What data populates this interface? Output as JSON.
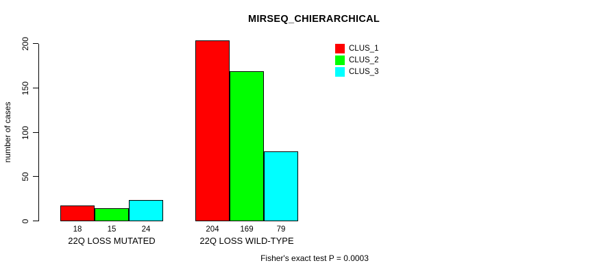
{
  "title": "MIRSEQ_CHIERARCHICAL",
  "footer": "Fisher's exact test P = 0.0003",
  "y_axis": {
    "label": "number of cases",
    "ticks": [
      0,
      50,
      100,
      150,
      200
    ]
  },
  "legend": [
    {
      "label": "CLUS_1",
      "color": "#FF0000"
    },
    {
      "label": "CLUS_2",
      "color": "#00FF00"
    },
    {
      "label": "CLUS_3",
      "color": "#00FFFF"
    }
  ],
  "chart_data": {
    "type": "bar",
    "title": "MIRSEQ_CHIERARCHICAL",
    "xlabel": "",
    "ylabel": "number of cases",
    "ylim": [
      0,
      200
    ],
    "grid": false,
    "legend_position": "top-right",
    "categories": [
      "22Q LOSS MUTATED",
      "22Q LOSS WILD-TYPE"
    ],
    "series": [
      {
        "name": "CLUS_1",
        "color": "#FF0000",
        "values": [
          18,
          204
        ]
      },
      {
        "name": "CLUS_2",
        "color": "#00FF00",
        "values": [
          15,
          169
        ]
      },
      {
        "name": "CLUS_3",
        "color": "#00FFFF",
        "values": [
          24,
          79
        ]
      }
    ],
    "bar_value_labels": [
      [
        18,
        15,
        24
      ],
      [
        204,
        169,
        79
      ]
    ],
    "annotation": "Fisher's exact test P = 0.0003"
  }
}
